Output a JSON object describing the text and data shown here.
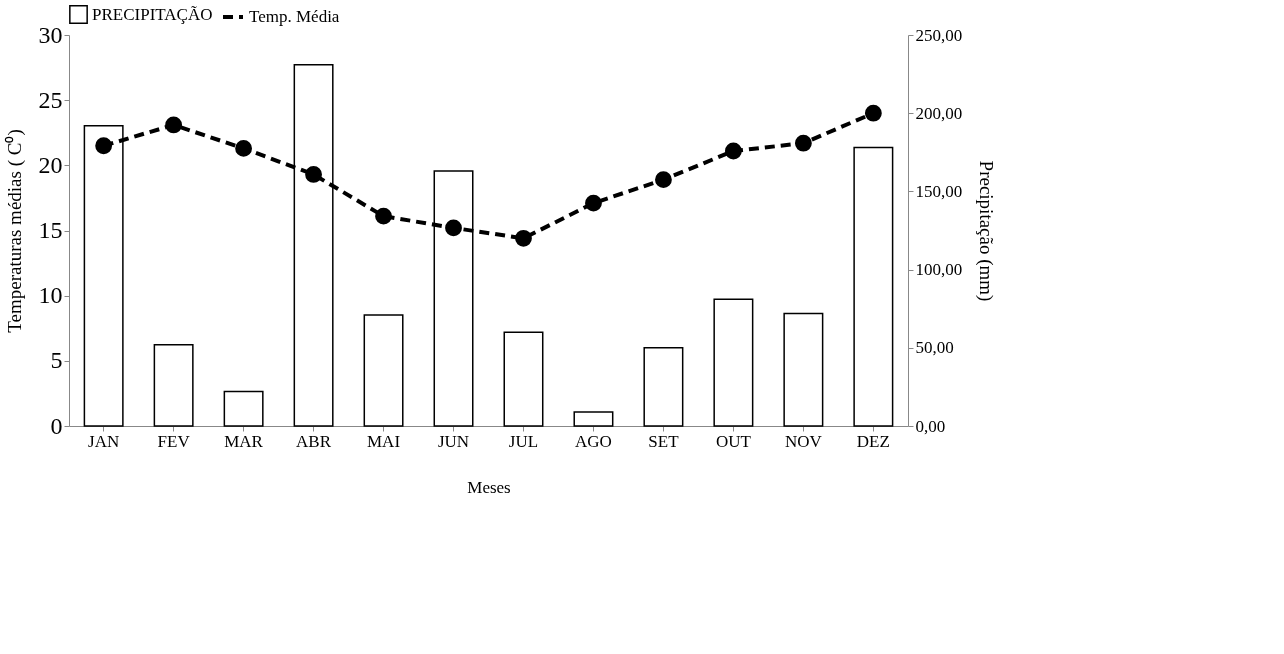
{
  "chart_data": {
    "type": "bar",
    "categories": [
      "JAN",
      "FEV",
      "MAR",
      "ABR",
      "MAI",
      "JUN",
      "JUL",
      "AGO",
      "SET",
      "OUT",
      "NOV",
      "DEZ"
    ],
    "xlabel": "Meses",
    "ylabel": "Temperaturas  médias  ( C⁰)",
    "y2label": "Precipitação (mm)",
    "series": [
      {
        "name": "PRECIPITAÇÃO",
        "axis": "y2",
        "color": "#ffffff",
        "values": [
          192,
          52,
          22,
          231,
          71,
          163,
          60,
          9,
          50,
          81,
          72,
          178
        ]
      },
      {
        "name": "Temp. Média",
        "type": "line",
        "color": "#000000",
        "marker": "circle",
        "line_style": "dashed",
        "values": [
          21.5,
          23.1,
          21.3,
          19.3,
          16.1,
          15.2,
          14.4,
          17.1,
          18.9,
          21.1,
          21.7,
          24.0
        ]
      }
    ],
    "ylim": [
      0,
      30
    ],
    "yticks": [
      0,
      5,
      10,
      15,
      20,
      25,
      30
    ],
    "y2lim": [
      0,
      250
    ],
    "y2ticks": [
      {
        "value": 0,
        "label": "0,00"
      },
      {
        "value": 50,
        "label": "50,00"
      },
      {
        "value": 100,
        "label": "100,00"
      },
      {
        "value": 150,
        "label": "150,00"
      },
      {
        "value": 200,
        "label": "200,00"
      },
      {
        "value": 250,
        "label": "250,00"
      }
    ],
    "legend": "top",
    "grid": false
  }
}
